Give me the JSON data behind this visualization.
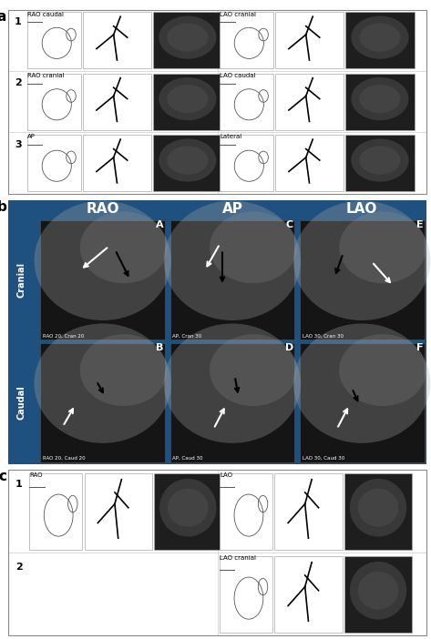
{
  "panel_a_rows_left": [
    "RAO caudal",
    "RAO cranial",
    "AP"
  ],
  "panel_a_rows_right": [
    "LAO cranial",
    "LAO caudal",
    "Lateral"
  ],
  "panel_a_row_nums": [
    "1",
    "2",
    "3"
  ],
  "panel_b_cols": [
    "RAO",
    "AP",
    "LAO"
  ],
  "panel_b_rows": [
    "Cranial",
    "Caudal"
  ],
  "panel_b_labels_top": [
    "A",
    "C",
    "E"
  ],
  "panel_b_labels_bot": [
    "B",
    "D",
    "F"
  ],
  "panel_b_captions_top": [
    "RAO 20, Cran 20",
    "AP, Cran 30",
    "LAO 30, Cran 30"
  ],
  "panel_b_captions_bot": [
    "RAO 20, Caud 20",
    "AP, Caud 30",
    "LAO 30, Caud 30"
  ],
  "panel_c_row1_left": "RAO",
  "panel_c_row1_right": "LAO",
  "panel_c_row2_right": "LAO cranial",
  "bg_color": "#ffffff",
  "panel_b_bg": "#1e5080",
  "cell_bg_white": "#ffffff",
  "cell_bg_dark": "#2a2a2a",
  "cell_ec": "#aaaaaa",
  "angio_inner_color": "#666666",
  "header_text_color": "#ffffff",
  "label_fontsize": 8,
  "title_fontsize": 5,
  "header_fontsize": 10,
  "caption_fontsize": 5
}
